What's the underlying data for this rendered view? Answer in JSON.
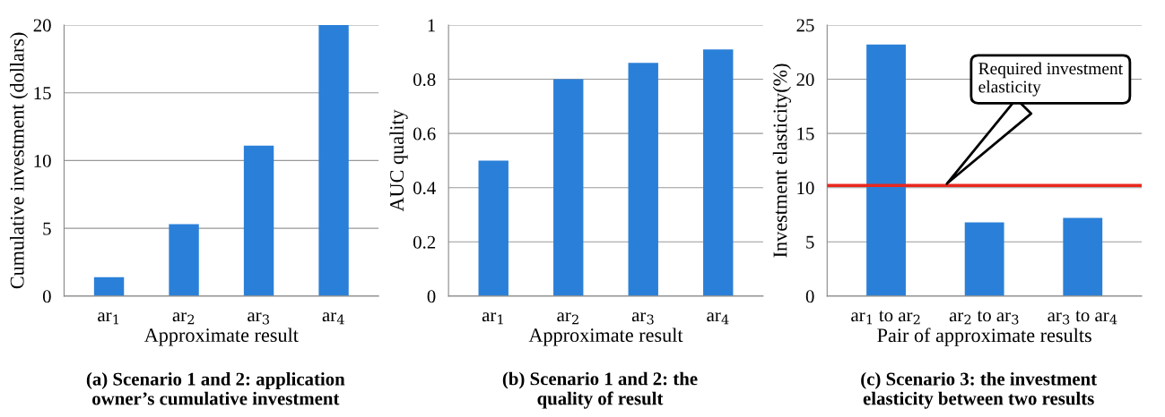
{
  "chart_data": [
    {
      "type": "bar",
      "title": "(a) Scenario 1 and 2: application\nowner’s cumulative investment",
      "xlabel": "Approximate result",
      "ylabel": "Cumulative investment (dollars)",
      "categories": [
        "ar$_{1}$",
        "ar$_{2}$",
        "ar$_{3}$",
        "ar$_{4}$"
      ],
      "values": [
        1.4,
        5.3,
        11.1,
        20
      ],
      "color": "#2a80d8",
      "ylim": [
        0,
        20
      ],
      "yticks": [
        0,
        5,
        10,
        15,
        20
      ],
      "grid": "y"
    },
    {
      "type": "bar",
      "title": "(b) Scenario 1 and 2: the\nquality of result",
      "xlabel": "Approximate result",
      "ylabel": "AUC quality",
      "categories": [
        "ar$_{1}$",
        "ar$_{2}$",
        "ar$_{3}$",
        "ar$_{4}$"
      ],
      "values": [
        0.5,
        0.8,
        0.86,
        0.91
      ],
      "color": "#2a80d8",
      "ylim": [
        0,
        1
      ],
      "yticks": [
        0,
        0.2,
        0.4,
        0.6,
        0.8,
        1
      ],
      "grid": "y"
    },
    {
      "type": "bar",
      "title": "(c) Scenario 3: the investment\nelasticity between two results",
      "xlabel": "Pair of approximate results",
      "ylabel": "Investment elasticity(%)",
      "categories": [
        "ar$_{1}$ to ar$_{2}$",
        "ar$_{2}$ to ar$_{3}$",
        "ar$_{3}$ to ar$_{4}$"
      ],
      "values": [
        23.2,
        6.8,
        7.2
      ],
      "color": "#2a80d8",
      "ylim": [
        0,
        25
      ],
      "yticks": [
        0,
        5,
        10,
        15,
        20,
        25
      ],
      "grid": "y",
      "ref_lines": [
        {
          "axis": "y",
          "value": 10.2,
          "color": "#e8281e"
        }
      ],
      "annotations": [
        "Required investment\nelasticity"
      ]
    }
  ]
}
